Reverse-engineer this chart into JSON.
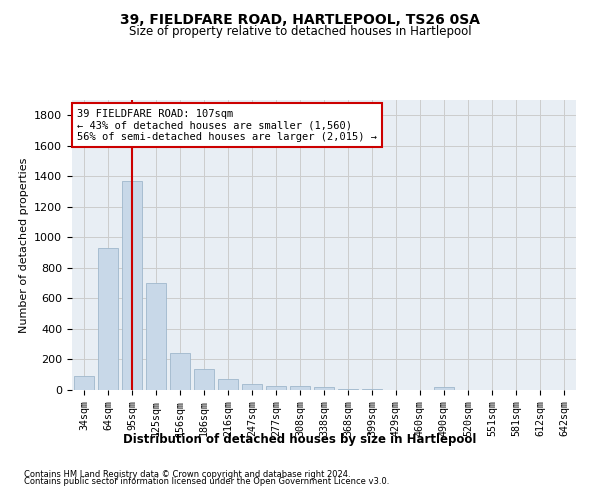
{
  "title": "39, FIELDFARE ROAD, HARTLEPOOL, TS26 0SA",
  "subtitle": "Size of property relative to detached houses in Hartlepool",
  "xlabel": "Distribution of detached houses by size in Hartlepool",
  "ylabel": "Number of detached properties",
  "categories": [
    "34sqm",
    "64sqm",
    "95sqm",
    "125sqm",
    "156sqm",
    "186sqm",
    "216sqm",
    "247sqm",
    "277sqm",
    "308sqm",
    "338sqm",
    "368sqm",
    "399sqm",
    "429sqm",
    "460sqm",
    "490sqm",
    "520sqm",
    "551sqm",
    "581sqm",
    "612sqm",
    "642sqm"
  ],
  "values": [
    90,
    930,
    1370,
    700,
    245,
    140,
    75,
    42,
    25,
    25,
    20,
    8,
    8,
    0,
    0,
    20,
    0,
    0,
    0,
    0,
    0
  ],
  "bar_color": "#c8d8e8",
  "bar_edge_color": "#a0b8cc",
  "grid_color": "#cccccc",
  "vline_color": "#cc0000",
  "annotation_text": "39 FIELDFARE ROAD: 107sqm\n← 43% of detached houses are smaller (1,560)\n56% of semi-detached houses are larger (2,015) →",
  "annotation_box_color": "#cc0000",
  "ylim": [
    0,
    1900
  ],
  "yticks": [
    0,
    200,
    400,
    600,
    800,
    1000,
    1200,
    1400,
    1600,
    1800
  ],
  "footnote1": "Contains HM Land Registry data © Crown copyright and database right 2024.",
  "footnote2": "Contains public sector information licensed under the Open Government Licence v3.0.",
  "bg_color": "#e8eef4"
}
